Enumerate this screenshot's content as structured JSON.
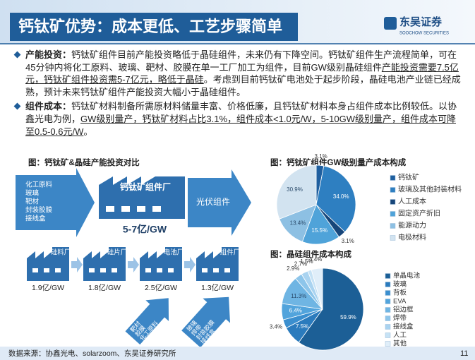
{
  "header": {
    "title": "钙钛矿优势：成本更低、工艺步骤简单",
    "logo": "东吴证券",
    "logo_en": "SOOCHOW SECURITIES"
  },
  "bullets": [
    {
      "label": "产能投资：",
      "parts": [
        {
          "text": "钙钛矿组件目前产能投资略低于晶硅组件，未来仍有下降空间。钙钛矿组件生产流程简单，可在45分钟内将化工原料、玻璃、靶材、胶膜在单一工厂加工为组件，目前GW级别晶硅组件"
        },
        {
          "text": "产能投资需要7.5亿元，钙钛矿组件投资需5-7亿元，略低于晶硅",
          "underline": true
        },
        {
          "text": "。考虑到目前钙钛矿电池处于起步阶段，晶硅电池产业链已经成熟，预计未来钙钛矿组件产能投资大幅小于晶硅组件。"
        }
      ]
    },
    {
      "label": "组件成本：",
      "parts": [
        {
          "text": "钙钛矿材料制备所需原材料储量丰富、价格低廉，且钙钛矿材料本身占组件成本比例较低。以协鑫光电为例，"
        },
        {
          "text": "GW级别量产，钙钛矿材料占比3.1%，组件成本<1.0元/W，5-10GW级别量产，组件成本可降至0.5-0.6元/W",
          "underline": true
        },
        {
          "text": "。"
        }
      ]
    }
  ],
  "diagram": {
    "title": "图：钙钛矿&晶硅产能投资对比",
    "inputs": [
      "化工原料",
      "玻璃",
      "靶材",
      "封装胶膜",
      "接线盒"
    ],
    "perovskite_plant": "钙钛矿组件厂",
    "pv_module": "光伏组件",
    "perovskite_cost": "5-7亿/GW",
    "plants": [
      {
        "name": "硅料厂",
        "cost": "1.9亿/GW"
      },
      {
        "name": "硅片厂",
        "cost": "1.8亿/GW"
      },
      {
        "name": "电池厂",
        "cost": "2.5亿/GW"
      },
      {
        "name": "组件厂",
        "cost": "1.3亿/GW"
      }
    ],
    "arrow1": [
      "靶材",
      "胶膜",
      "化工原料"
    ],
    "arrow2": [
      "玻璃",
      "焊带",
      "封装胶膜",
      "接线盒"
    ]
  },
  "chart_data": [
    {
      "type": "pie",
      "title": "图：钙钛矿组件GW级别量产成本构成",
      "categories": [
        "钙钛矿",
        "玻璃及其他封装材料",
        "人工成本",
        "固定资产折旧",
        "能源动力",
        "电极材料"
      ],
      "values": [
        3.1,
        34.0,
        3.1,
        15.5,
        13.4,
        30.9
      ],
      "value_labels": [
        "3.1%",
        "34.0%",
        "3.1%",
        "15.5%",
        "13.4%",
        "30.9%"
      ],
      "colors": [
        "#1f5f9f",
        "#2e7fc1",
        "#17467a",
        "#4fa3d9",
        "#8dc0e3",
        "#d2e3f0"
      ]
    },
    {
      "type": "pie",
      "title": "图：晶硅组件成本构成",
      "categories": [
        "单晶电池",
        "玻璃",
        "背板",
        "EVA",
        "铝边框",
        "焊带",
        "接线盒",
        "人工",
        "其他"
      ],
      "values": [
        59.9,
        7.5,
        3.4,
        6.4,
        11.3,
        2.9,
        2.7,
        1.5,
        4.4
      ],
      "value_labels": [
        "59.9%",
        "7.5%",
        "3.4%",
        "6.4%",
        "11.3%",
        "2.9%",
        "2.7%",
        "1.5%",
        "4.4%"
      ],
      "colors": [
        "#1c5f96",
        "#2b7bbd",
        "#3b8fcf",
        "#52a4dc",
        "#6fb5e3",
        "#8dc5ea",
        "#a9d3f0",
        "#c6e2f5",
        "#e0eef9"
      ]
    }
  ],
  "footer": {
    "source": "数据来源：协鑫光电、solarzoom、东吴证券研究所",
    "page": "11"
  }
}
